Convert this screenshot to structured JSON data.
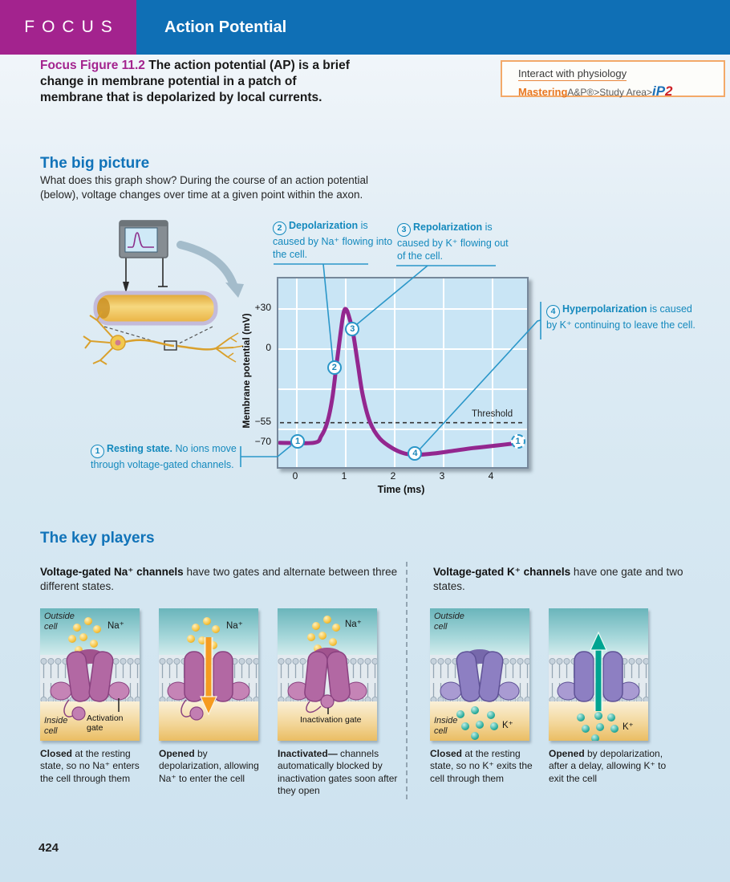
{
  "page": {
    "number": "424"
  },
  "header": {
    "focus_label": "FOCUS",
    "title": "Action Potential",
    "magenta": "#a3238e",
    "blue": "#0f6fb5"
  },
  "caption": {
    "label": "Focus Figure 11.2",
    "text": " The action potential (AP) is a brief change in membrane potential in a patch of membrane that is depolarized by local currents."
  },
  "interact_box": {
    "line1": "Interact with physiology",
    "brand": "Mastering",
    "brand_rest": "A&P®>Study Area>",
    "ip2_blue": "iP",
    "ip2_red": "2"
  },
  "big_picture": {
    "heading": "The big picture",
    "body": "What does this graph show? During the course of an action potential (below), voltage changes over time at a given point within the axon."
  },
  "callouts": {
    "c1": {
      "num": "1",
      "bold": "Resting state.",
      "rest": " No ions move through voltage-gated channels."
    },
    "c2": {
      "num": "2",
      "bold": "Depolarization",
      "rest": " is caused by Na⁺ flowing into the cell."
    },
    "c3": {
      "num": "3",
      "bold": "Repolarization",
      "rest": " is caused by K⁺ flowing out of the cell."
    },
    "c4": {
      "num": "4",
      "bold": "Hyperpolarization",
      "rest": " is caused by K⁺ continuing to leave the cell."
    }
  },
  "chart_data": {
    "type": "line",
    "title": "",
    "xlabel": "Time (ms)",
    "ylabel": "Membrane potential (mV)",
    "xlim": [
      -0.38,
      4.7
    ],
    "ylim": [
      -88,
      52.8
    ],
    "grid": true,
    "x_ticks": [
      {
        "label": "0",
        "value": 0
      },
      {
        "label": "1",
        "value": 1
      },
      {
        "label": "2",
        "value": 2
      },
      {
        "label": "3",
        "value": 3
      },
      {
        "label": "4",
        "value": 4
      }
    ],
    "y_ticks": [
      {
        "label": "+30",
        "value": 30
      },
      {
        "label": "0",
        "value": 0
      },
      {
        "label": "−55",
        "value": -55
      },
      {
        "label": "−70",
        "value": -70
      }
    ],
    "threshold": {
      "label": "Threshold",
      "value": -55
    },
    "resting_potential_mV": -70,
    "peak_mV": 30,
    "curve_points": [
      [
        -0.35,
        -70
      ],
      [
        0.35,
        -70
      ],
      [
        0.5,
        -65
      ],
      [
        0.62,
        -55
      ],
      [
        0.72,
        -38
      ],
      [
        0.8,
        -15
      ],
      [
        0.88,
        8
      ],
      [
        0.95,
        26
      ],
      [
        1.0,
        30
      ],
      [
        1.06,
        25
      ],
      [
        1.15,
        12
      ],
      [
        1.25,
        -12
      ],
      [
        1.35,
        -35
      ],
      [
        1.5,
        -55
      ],
      [
        1.7,
        -67
      ],
      [
        1.95,
        -74
      ],
      [
        2.2,
        -78
      ],
      [
        2.45,
        -79
      ],
      [
        2.8,
        -78
      ],
      [
        3.2,
        -76
      ],
      [
        3.6,
        -74
      ],
      [
        4.1,
        -72
      ],
      [
        4.55,
        -70
      ]
    ],
    "markers": [
      {
        "label": "1",
        "x": 0.05,
        "y": -70,
        "dashed": false
      },
      {
        "label": "2",
        "x": 0.8,
        "y": -15,
        "dashed": false
      },
      {
        "label": "3",
        "x": 1.17,
        "y": 14,
        "dashed": false
      },
      {
        "label": "4",
        "x": 2.45,
        "y": -79,
        "dashed": false
      },
      {
        "label": "1",
        "x": 4.55,
        "y": -70,
        "dashed": true
      }
    ],
    "curve_color": "#93278f",
    "plot_bg": "#c9e5f5"
  },
  "key_players": {
    "heading": "The key players",
    "na_intro": {
      "b1": "Voltage-gated ",
      "ion": "Na⁺",
      "b2": " channels",
      "rest": " have two gates and alternate between three different states."
    },
    "k_intro": {
      "b1": "Voltage-gated ",
      "ion": "K⁺",
      "b2": " channels",
      "rest": " have one gate and two states."
    },
    "panels": [
      {
        "state": "na-closed",
        "ion_label": "Na⁺",
        "outside": "Outside cell",
        "inside": "Inside cell",
        "gate_label": "Activation gate",
        "caption_bold": "Closed",
        "caption_rest": " at the resting state, so no Na⁺ enters the cell through them"
      },
      {
        "state": "na-opened",
        "ion_label": "Na⁺",
        "caption_bold": "Opened",
        "caption_rest": " by depolarization, allowing Na⁺ to enter the cell"
      },
      {
        "state": "na-inactivated",
        "ion_label": "Na⁺",
        "gate_label": "Inactivation gate",
        "caption_bold": "Inactivated—",
        "caption_rest": " channels automatically blocked by inactivation gates soon after they open"
      },
      {
        "state": "k-closed",
        "ion_label": "K⁺",
        "outside": "Outside cell",
        "inside": "Inside cell",
        "caption_bold": "Closed",
        "caption_rest": " at the resting state, so no K⁺ exits the cell through them"
      },
      {
        "state": "k-opened",
        "ion_label": "K⁺",
        "caption_bold": "Opened",
        "caption_rest": " by depolarization, after a delay, allowing K⁺ to exit the cell"
      }
    ]
  },
  "colors": {
    "accent_teal": "#1489bd",
    "curve_purple": "#93278f",
    "na_channel": "#b268a3",
    "k_channel": "#8d7fc2",
    "na_ion": "#f5c23d",
    "k_ion": "#2fae9f",
    "na_arrow": "#f59b20",
    "k_arrow": "#00a491",
    "interact_border": "#f3a968"
  }
}
